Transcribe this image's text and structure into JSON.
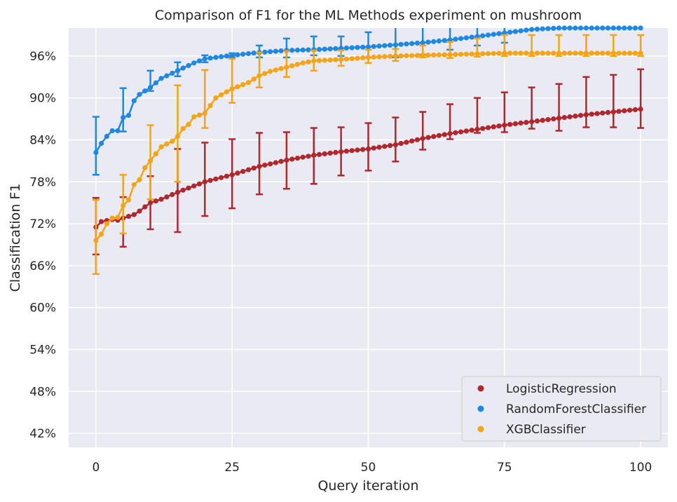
{
  "chart_data": {
    "type": "line",
    "title": "Comparison of F1 for the ML Methods experiment on mushroom",
    "xlabel": "Query iteration",
    "ylabel": "Classification F1",
    "xlim": [
      -5,
      105
    ],
    "ylim": [
      0.4,
      1.0
    ],
    "xticks": [
      0,
      25,
      50,
      75,
      100
    ],
    "yticks": [
      0.42,
      0.48,
      0.54,
      0.6,
      0.66,
      0.72,
      0.78,
      0.84,
      0.9,
      0.96
    ],
    "ytick_labels": [
      "42%",
      "48%",
      "54%",
      "60%",
      "66%",
      "72%",
      "78%",
      "84%",
      "90%",
      "96%"
    ],
    "grid": true,
    "legend_position": "lower-right",
    "errorbar_every": 5,
    "colors": {
      "plot_bg": "#EAEAF2",
      "grid": "#FFFFFF"
    },
    "series": [
      {
        "name": "LogisticRegression",
        "color": "#B0272D",
        "anchors_x": [
          0,
          1,
          3,
          4,
          5,
          7,
          8,
          10,
          12,
          15,
          20,
          25,
          30,
          35,
          40,
          45,
          50,
          55,
          60,
          65,
          70,
          75,
          80,
          85,
          90,
          95,
          100
        ],
        "anchors_y": [
          0.715,
          0.723,
          0.726,
          0.725,
          0.728,
          0.733,
          0.738,
          0.75,
          0.755,
          0.765,
          0.78,
          0.79,
          0.802,
          0.811,
          0.818,
          0.823,
          0.827,
          0.833,
          0.842,
          0.849,
          0.855,
          0.861,
          0.866,
          0.871,
          0.876,
          0.88,
          0.884
        ],
        "errors_x": [
          0,
          5,
          10,
          15,
          20,
          25,
          30,
          35,
          40,
          45,
          50,
          55,
          60,
          65,
          70,
          75,
          80,
          85,
          90,
          95,
          100
        ],
        "errors_lo": [
          0.676,
          0.687,
          0.712,
          0.708,
          0.731,
          0.742,
          0.762,
          0.77,
          0.777,
          0.789,
          0.796,
          0.809,
          0.826,
          0.841,
          0.85,
          0.851,
          0.856,
          0.853,
          0.858,
          0.858,
          0.857
        ],
        "errors_hi": [
          0.757,
          0.758,
          0.788,
          0.827,
          0.836,
          0.841,
          0.85,
          0.851,
          0.857,
          0.858,
          0.864,
          0.872,
          0.88,
          0.891,
          0.9,
          0.908,
          0.915,
          0.92,
          0.93,
          0.933,
          0.941
        ]
      },
      {
        "name": "RandomForestClassifier",
        "color": "#1E88E5",
        "anchors_x": [
          0,
          1,
          2,
          3,
          4,
          5,
          6,
          7,
          8,
          10,
          12,
          15,
          18,
          20,
          25,
          30,
          35,
          40,
          45,
          50,
          55,
          60,
          65,
          70,
          75,
          80,
          85,
          90,
          95,
          100
        ],
        "anchors_y": [
          0.822,
          0.835,
          0.845,
          0.853,
          0.853,
          0.872,
          0.875,
          0.896,
          0.905,
          0.915,
          0.928,
          0.939,
          0.95,
          0.956,
          0.961,
          0.965,
          0.968,
          0.969,
          0.971,
          0.973,
          0.976,
          0.979,
          0.983,
          0.988,
          0.993,
          0.998,
          1.0,
          1.0,
          1.0,
          1.0
        ],
        "errors_x": [
          0,
          5,
          10,
          15,
          20,
          25,
          30,
          35,
          40,
          45,
          50,
          55,
          60,
          65,
          70,
          75
        ],
        "errors_lo": [
          0.79,
          0.852,
          0.91,
          0.931,
          0.951,
          0.958,
          0.958,
          0.958,
          0.961,
          0.96,
          0.958,
          0.958,
          0.962,
          0.969,
          0.975,
          0.979
        ],
        "errors_hi": [
          0.873,
          0.914,
          0.939,
          0.951,
          0.961,
          0.964,
          0.975,
          0.985,
          0.988,
          0.988,
          0.994,
          1.0,
          1.0,
          1.0,
          1.0,
          1.0
        ]
      },
      {
        "name": "XGBClassifier",
        "color": "#F5A416",
        "anchors_x": [
          0,
          1,
          2,
          3,
          4,
          5,
          6,
          7,
          8,
          9,
          10,
          11,
          12,
          14,
          15,
          16,
          17,
          18,
          20,
          22,
          25,
          28,
          30,
          32,
          35,
          38,
          40,
          45,
          50,
          55,
          60,
          65,
          70,
          75,
          80,
          85,
          90,
          95,
          100
        ],
        "anchors_y": [
          0.696,
          0.705,
          0.72,
          0.728,
          0.729,
          0.746,
          0.754,
          0.776,
          0.783,
          0.8,
          0.81,
          0.82,
          0.83,
          0.838,
          0.845,
          0.856,
          0.862,
          0.873,
          0.878,
          0.9,
          0.913,
          0.922,
          0.932,
          0.938,
          0.944,
          0.95,
          0.953,
          0.955,
          0.958,
          0.96,
          0.961,
          0.962,
          0.963,
          0.964,
          0.964,
          0.964,
          0.964,
          0.964,
          0.964
        ],
        "errors_x": [
          0,
          5,
          10,
          15,
          20,
          25,
          30,
          35,
          40,
          45,
          50,
          55,
          60,
          65,
          70,
          75,
          80,
          85,
          90,
          95,
          100
        ],
        "errors_lo": [
          0.648,
          0.706,
          0.755,
          0.78,
          0.857,
          0.893,
          0.915,
          0.93,
          0.939,
          0.946,
          0.95,
          0.953,
          0.958,
          0.957,
          0.959,
          0.96,
          0.96,
          0.96,
          0.96,
          0.96,
          0.96
        ],
        "errors_hi": [
          0.754,
          0.79,
          0.861,
          0.918,
          0.94,
          0.956,
          0.965,
          0.967,
          0.968,
          0.968,
          0.969,
          0.97,
          0.975,
          0.98,
          0.985,
          0.99,
          0.99,
          0.99,
          0.99,
          0.99,
          0.99
        ]
      }
    ]
  }
}
